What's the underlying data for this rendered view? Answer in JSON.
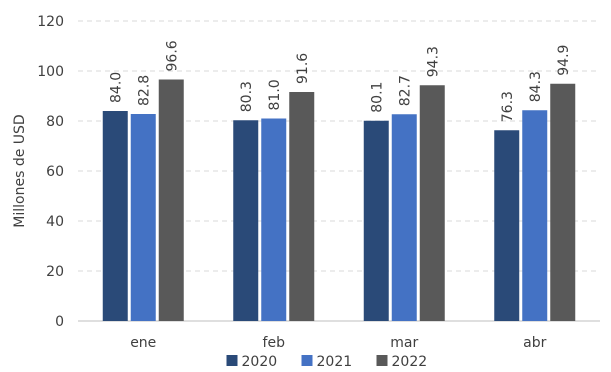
{
  "chart_data": {
    "type": "bar",
    "categories": [
      "ene",
      "feb",
      "mar",
      "abr"
    ],
    "series": [
      {
        "name": "2020",
        "values": [
          84.0,
          80.3,
          80.1,
          76.3
        ],
        "labels": [
          "84.0",
          "80.3",
          "80.1",
          "76.3"
        ],
        "color": "#2a4a78"
      },
      {
        "name": "2021",
        "values": [
          82.8,
          81.0,
          82.7,
          84.3
        ],
        "labels": [
          "82.8",
          "81.0",
          "82.7",
          "84.3"
        ],
        "color": "#4472c4"
      },
      {
        "name": "2022",
        "values": [
          96.6,
          91.6,
          94.3,
          94.9
        ],
        "labels": [
          "96.6",
          "91.6",
          "94.3",
          "94.9"
        ],
        "color": "#595959"
      }
    ],
    "yticks": [
      "0",
      "20",
      "40",
      "60",
      "80",
      "100",
      "120"
    ],
    "ylabel": "Millones de USD",
    "ylim": [
      0,
      120
    ],
    "grid": true,
    "legend": "bottom"
  }
}
